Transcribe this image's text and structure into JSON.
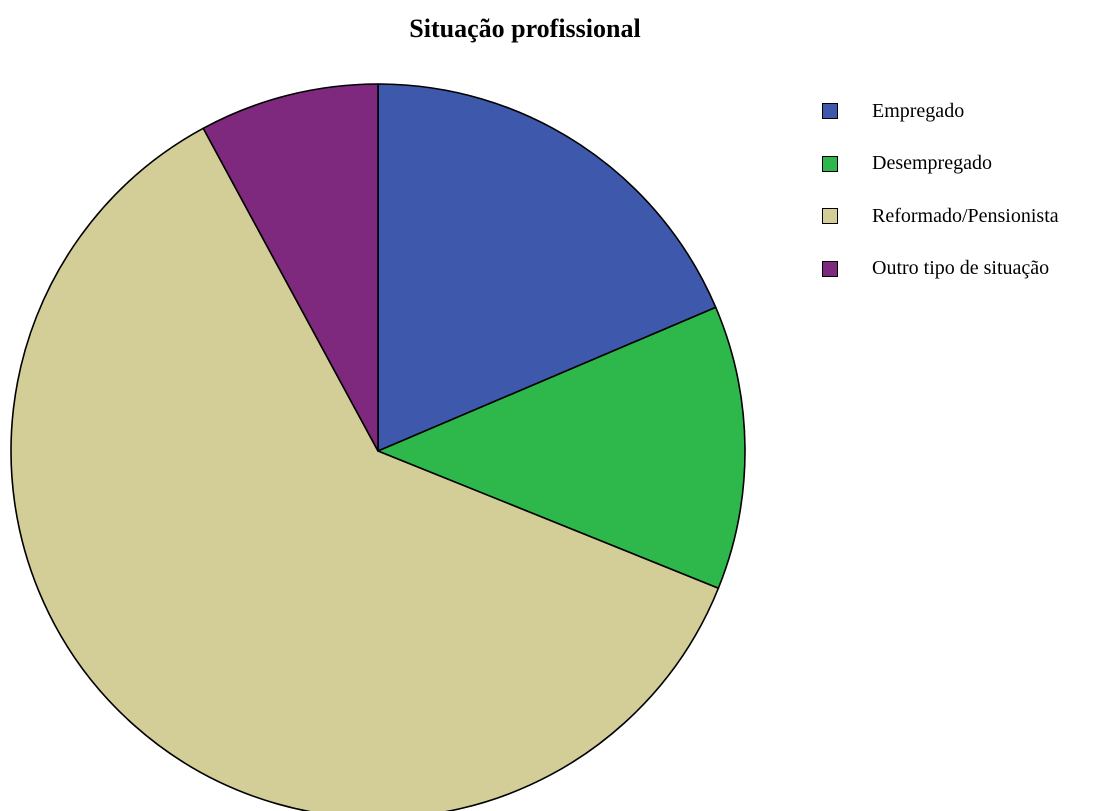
{
  "chart_data": {
    "type": "pie",
    "title": "Situação profissional",
    "legend_position": "right",
    "slices": [
      {
        "label": "Empregado",
        "value": 18.6,
        "color": "#3e58ab"
      },
      {
        "label": "Desempregado",
        "value": 12.5,
        "color": "#2eb84b"
      },
      {
        "label": "Reformado/Pensionista",
        "value": 61.0,
        "color": "#d3ce98"
      },
      {
        "label": "Outro tipo de situação",
        "value": 7.9,
        "color": "#7e297d"
      }
    ]
  }
}
